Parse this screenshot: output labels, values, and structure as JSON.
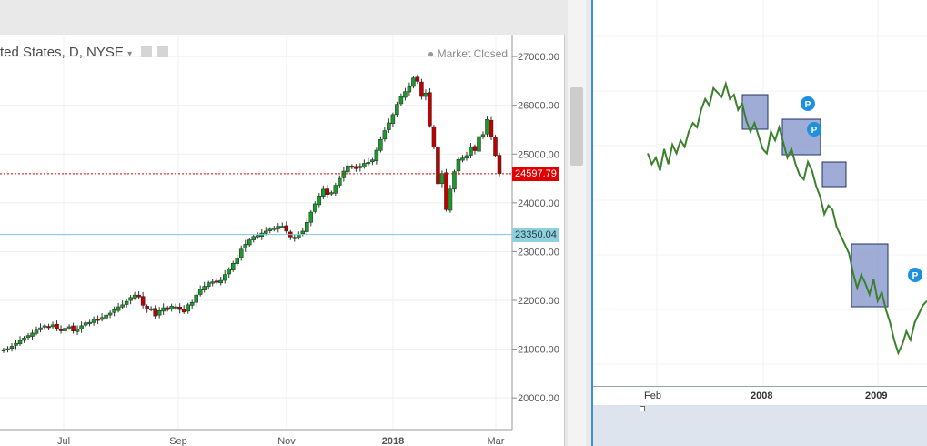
{
  "chart_data": [
    {
      "type": "candlestick",
      "legend": "ted States, D, NYSE",
      "status": "Market Closed",
      "y_ticks": [
        "27000.00",
        "26000.00",
        "25000.00",
        "24000.00",
        "23000.00",
        "22000.00",
        "21000.00",
        "20000.00"
      ],
      "ylim": [
        19350,
        27450
      ],
      "x_labels": [
        "Jul",
        "Sep",
        "Nov",
        "2018",
        "Mar"
      ],
      "last_price": {
        "label": "24597.79",
        "value": 24597.79,
        "color": "#e00000"
      },
      "hline": {
        "label": "23350.04",
        "value": 23350.04,
        "color": "#7ec8d8"
      },
      "up_color": "#1a9a2a",
      "down_color": "#c00000",
      "closes": [
        20990,
        21010,
        21060,
        21120,
        21180,
        21230,
        21280,
        21330,
        21390,
        21440,
        21480,
        21460,
        21500,
        21420,
        21380,
        21430,
        21460,
        21370,
        21410,
        21480,
        21540,
        21550,
        21610,
        21590,
        21650,
        21700,
        21740,
        21810,
        21870,
        21910,
        21980,
        22060,
        22110,
        22070,
        21900,
        21820,
        21830,
        21680,
        21790,
        21850,
        21810,
        21880,
        21870,
        21810,
        21760,
        21910,
        21960,
        22110,
        22230,
        22290,
        22360,
        22380,
        22370,
        22410,
        22530,
        22640,
        22760,
        22870,
        23050,
        23150,
        23240,
        23310,
        23330,
        23380,
        23420,
        23460,
        23480,
        23520,
        23520,
        23420,
        23300,
        23280,
        23350,
        23420,
        23600,
        23810,
        23980,
        24140,
        24280,
        24170,
        24210,
        24360,
        24500,
        24650,
        24760,
        24740,
        24700,
        24750,
        24810,
        24830,
        24880,
        25080,
        25300,
        25480,
        25640,
        25810,
        26020,
        26180,
        26280,
        26380,
        26560,
        26490,
        26180,
        26250,
        25580,
        25150,
        24390,
        24600,
        23860,
        24280,
        24640,
        24890,
        24920,
        24970,
        25140,
        25070,
        25360,
        25400,
        25710,
        25360,
        24970,
        24597.79
      ]
    },
    {
      "type": "line",
      "x_labels": [
        "Feb",
        "2008",
        "2009"
      ],
      "markers": [
        "P",
        "P",
        "P"
      ],
      "line_color": "#2d8a2d",
      "box_color": "#7f91c8",
      "values": [
        0.6,
        0.55,
        0.58,
        0.52,
        0.62,
        0.55,
        0.64,
        0.6,
        0.66,
        0.63,
        0.7,
        0.74,
        0.72,
        0.8,
        0.85,
        0.82,
        0.9,
        0.88,
        0.86,
        0.92,
        0.85,
        0.87,
        0.8,
        0.83,
        0.75,
        0.7,
        0.74,
        0.68,
        0.62,
        0.6,
        0.7,
        0.66,
        0.72,
        0.65,
        0.58,
        0.62,
        0.55,
        0.5,
        0.48,
        0.56,
        0.52,
        0.45,
        0.4,
        0.32,
        0.36,
        0.34,
        0.26,
        0.22,
        0.18,
        0.14,
        0.05,
        -0.02,
        0.04,
        0.0,
        -0.05,
        0.02,
        -0.08,
        -0.04,
        -0.12,
        -0.18,
        -0.26,
        -0.32,
        -0.28,
        -0.22,
        -0.26,
        -0.18,
        -0.14,
        -0.1,
        -0.08
      ]
    }
  ]
}
